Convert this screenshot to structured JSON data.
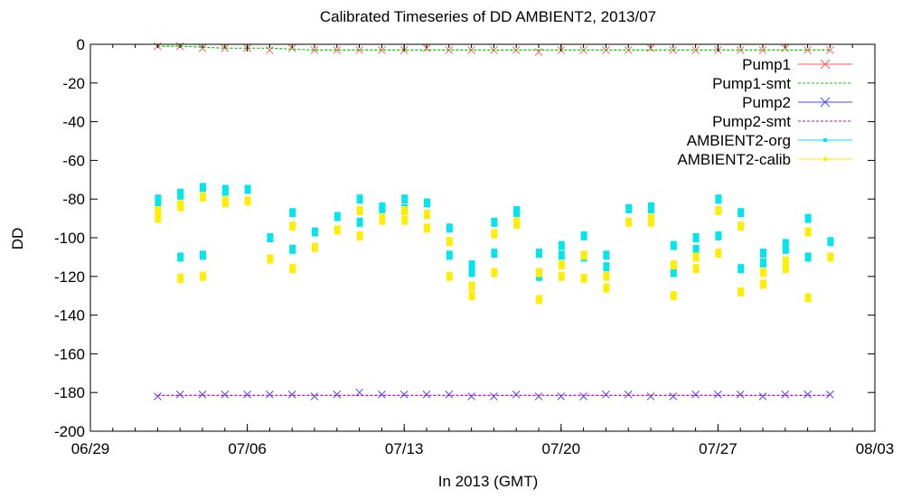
{
  "chart_data": {
    "type": "scatter",
    "title": "Calibrated Timeseries of DD AMBIENT2, 2013/07",
    "xlabel": "In 2013 (GMT)",
    "ylabel": "DD",
    "xlim": [
      "06/29",
      "08/03"
    ],
    "ylim": [
      -200,
      0
    ],
    "x_ticks": [
      "06/29",
      "07/06",
      "07/13",
      "07/20",
      "07/27",
      "08/03"
    ],
    "y_ticks": [
      0,
      -20,
      -40,
      -60,
      -80,
      -100,
      -120,
      -140,
      -160,
      -180,
      -200
    ],
    "grid": false,
    "legend_position": "top-right",
    "colors": {
      "Pump1": "#ff5a5a",
      "Pump1-smt": "#00cc00",
      "Pump2": "#4a4aff",
      "Pump2-smt": "#cc00cc",
      "AMBIENT2-org": "#00e5ee",
      "AMBIENT2-calib": "#ffee00"
    },
    "series": [
      {
        "name": "Pump1",
        "marker": "x",
        "x": [
          "07/02",
          "07/03",
          "07/04",
          "07/05",
          "07/06",
          "07/07",
          "07/08",
          "07/09",
          "07/10",
          "07/11",
          "07/12",
          "07/13",
          "07/14",
          "07/15",
          "07/16",
          "07/17",
          "07/18",
          "07/19",
          "07/20",
          "07/21",
          "07/22",
          "07/23",
          "07/24",
          "07/25",
          "07/26",
          "07/27",
          "07/28",
          "07/29",
          "07/30",
          "07/31",
          "08/01"
        ],
        "y": [
          -1,
          -1,
          -2,
          -2,
          -2,
          -3,
          -2,
          -3,
          -3,
          -3,
          -3,
          -3,
          -2,
          -3,
          -3,
          -3,
          -3,
          -4,
          -3,
          -3,
          -3,
          -3,
          -2,
          -3,
          -3,
          -3,
          -3,
          -3,
          -2,
          -3,
          -3
        ]
      },
      {
        "name": "Pump1-smt",
        "x": [
          "07/02",
          "07/03",
          "07/04",
          "07/05",
          "07/06",
          "07/07",
          "07/08",
          "07/09",
          "07/10",
          "07/11",
          "07/12",
          "07/13",
          "07/14",
          "07/15",
          "07/16",
          "07/17",
          "07/18",
          "07/19",
          "07/20",
          "07/21",
          "07/22",
          "07/23",
          "07/24",
          "07/25",
          "07/26",
          "07/27",
          "07/28",
          "07/29",
          "07/30",
          "07/31",
          "08/01"
        ],
        "y": [
          -1,
          -1,
          -1.5,
          -2,
          -2,
          -2,
          -2.5,
          -3,
          -3,
          -3,
          -3,
          -3,
          -3,
          -3,
          -3,
          -3,
          -3,
          -3,
          -3,
          -3,
          -3,
          -3,
          -3,
          -3,
          -3,
          -3,
          -3,
          -3,
          -3,
          -3,
          -3
        ]
      },
      {
        "name": "Pump2",
        "marker": "x",
        "x": [
          "07/02",
          "07/03",
          "07/04",
          "07/05",
          "07/06",
          "07/07",
          "07/08",
          "07/09",
          "07/10",
          "07/11",
          "07/12",
          "07/13",
          "07/14",
          "07/15",
          "07/16",
          "07/17",
          "07/18",
          "07/19",
          "07/20",
          "07/21",
          "07/22",
          "07/23",
          "07/24",
          "07/25",
          "07/26",
          "07/27",
          "07/28",
          "07/29",
          "07/30",
          "07/31",
          "08/01"
        ],
        "y": [
          -182,
          -181,
          -181,
          -181,
          -181,
          -181,
          -181,
          -182,
          -181,
          -180,
          -181,
          -181,
          -181,
          -181,
          -182,
          -182,
          -181,
          -182,
          -182,
          -182,
          -181,
          -181,
          -182,
          -182,
          -181,
          -181,
          -181,
          -182,
          -181,
          -181,
          -181
        ]
      },
      {
        "name": "Pump2-smt",
        "x": [
          "07/02",
          "07/03",
          "07/04",
          "07/05",
          "07/06",
          "07/07",
          "07/08",
          "07/09",
          "07/10",
          "07/11",
          "07/12",
          "07/13",
          "07/14",
          "07/15",
          "07/16",
          "07/17",
          "07/18",
          "07/19",
          "07/20",
          "07/21",
          "07/22",
          "07/23",
          "07/24",
          "07/25",
          "07/26",
          "07/27",
          "07/28",
          "07/29",
          "07/30",
          "07/31",
          "08/01"
        ],
        "y": [
          -181.5,
          -181.5,
          -181.5,
          -181.5,
          -181.5,
          -181.5,
          -181.5,
          -181.5,
          -181.5,
          -181.5,
          -181.5,
          -181.5,
          -181.5,
          -181.5,
          -181.5,
          -181.5,
          -181.5,
          -181.5,
          -181.5,
          -181.5,
          -181.5,
          -181.5,
          -181.5,
          -181.5,
          -181.5,
          -181.5,
          -181.5,
          -181.5,
          -181.5,
          -181.5,
          -181.5
        ]
      },
      {
        "name": "AMBIENT2-org",
        "marker": "*",
        "x": [
          "07/02",
          "07/02",
          "07/03",
          "07/03",
          "07/03",
          "07/04",
          "07/04",
          "07/05",
          "07/05",
          "07/06",
          "07/07",
          "07/08",
          "07/08",
          "07/09",
          "07/10",
          "07/11",
          "07/11",
          "07/12",
          "07/12",
          "07/13",
          "07/13",
          "07/14",
          "07/14",
          "07/15",
          "07/15",
          "07/16",
          "07/16",
          "07/17",
          "07/17",
          "07/18",
          "07/18",
          "07/19",
          "07/19",
          "07/20",
          "07/20",
          "07/21",
          "07/21",
          "07/22",
          "07/22",
          "07/23",
          "07/24",
          "07/24",
          "07/25",
          "07/25",
          "07/26",
          "07/26",
          "07/27",
          "07/27",
          "07/28",
          "07/28",
          "07/29",
          "07/29",
          "07/30",
          "07/30",
          "07/31",
          "07/31",
          "08/01"
        ],
        "y": [
          -84,
          -80,
          -77,
          -78,
          -110,
          -109,
          -74,
          -75,
          -76,
          -75,
          -100,
          -106,
          -87,
          -97,
          -89,
          -92,
          -80,
          -84,
          -85,
          -85,
          -80,
          -82,
          -88,
          -95,
          -109,
          -118,
          -114,
          -108,
          -92,
          -87,
          -86,
          -108,
          -120,
          -109,
          -104,
          -110,
          -99,
          -115,
          -109,
          -85,
          -85,
          -84,
          -118,
          -104,
          -106,
          -100,
          -99,
          -80,
          -87,
          -116,
          -113,
          -108,
          -103,
          -106,
          -110,
          -90,
          -102
        ]
      },
      {
        "name": "AMBIENT2-calib",
        "marker": "*",
        "x": [
          "07/02",
          "07/02",
          "07/03",
          "07/03",
          "07/03",
          "07/04",
          "07/04",
          "07/05",
          "07/05",
          "07/06",
          "07/07",
          "07/08",
          "07/08",
          "07/09",
          "07/10",
          "07/11",
          "07/11",
          "07/12",
          "07/12",
          "07/13",
          "07/13",
          "07/14",
          "07/14",
          "07/15",
          "07/15",
          "07/16",
          "07/16",
          "07/17",
          "07/17",
          "07/18",
          "07/18",
          "07/19",
          "07/19",
          "07/20",
          "07/20",
          "07/21",
          "07/21",
          "07/22",
          "07/22",
          "07/23",
          "07/24",
          "07/24",
          "07/25",
          "07/25",
          "07/26",
          "07/26",
          "07/27",
          "07/27",
          "07/28",
          "07/28",
          "07/29",
          "07/29",
          "07/30",
          "07/30",
          "07/31",
          "07/31",
          "08/01"
        ],
        "y": [
          -90,
          -86,
          -83,
          -84,
          -121,
          -120,
          -79,
          -81,
          -82,
          -81,
          -111,
          -116,
          -94,
          -105,
          -96,
          -99,
          -86,
          -90,
          -91,
          -91,
          -86,
          -88,
          -95,
          -102,
          -120,
          -130,
          -125,
          -118,
          -98,
          -93,
          -92,
          -118,
          -132,
          -120,
          -114,
          -121,
          -109,
          -126,
          -120,
          -92,
          -92,
          -90,
          -130,
          -114,
          -116,
          -110,
          -108,
          -86,
          -94,
          -128,
          -124,
          -118,
          -112,
          -116,
          -131,
          -97,
          -110
        ]
      }
    ]
  }
}
